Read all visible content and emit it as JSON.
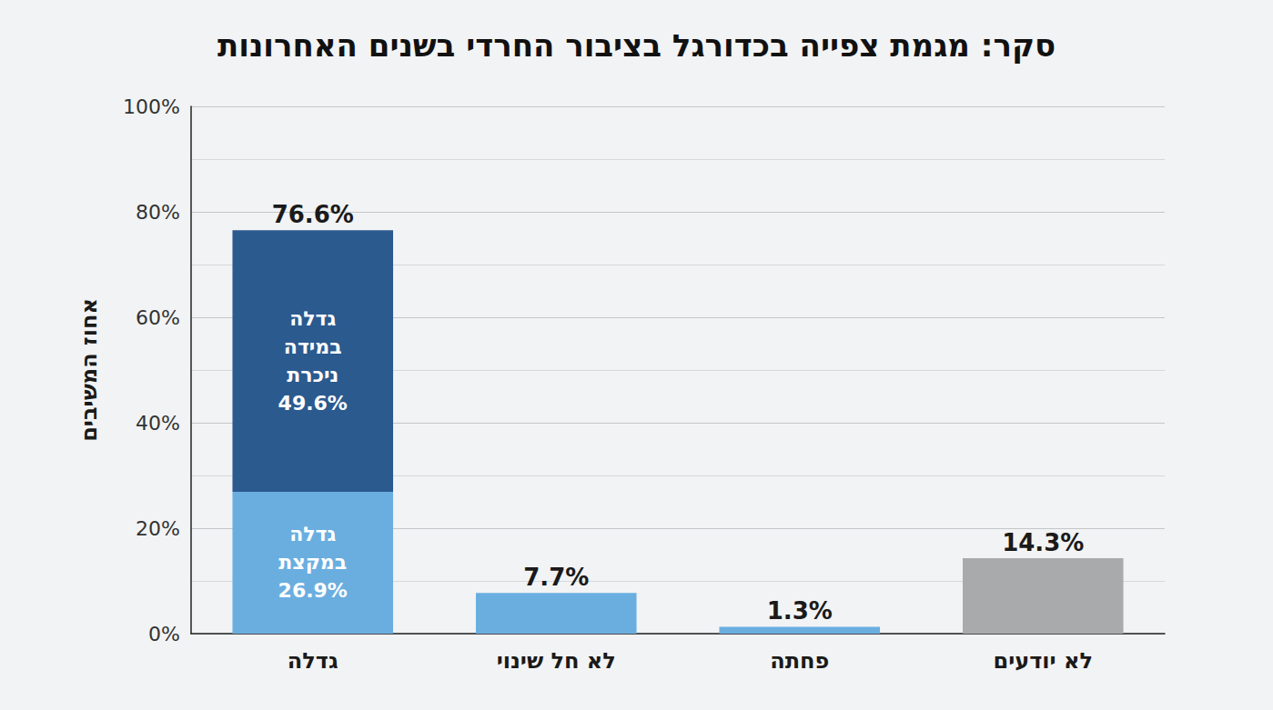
{
  "chart_data": {
    "type": "bar",
    "title": "סקר: מגמת צפייה בכדורגל בציבור החרדי בשנים האחרונות",
    "y_label": "אחוז המשיבים",
    "categories": [
      "גדלה",
      "לא חל שינוי",
      "פחתה",
      "לא יודעים"
    ],
    "stacked": true,
    "data_labels": true,
    "grid": true,
    "series": [
      {
        "name": "גדלה במקצת",
        "color": "#6aaee0",
        "values": [
          26.9,
          null,
          null,
          null
        ],
        "value_labels": [
          "26.9%",
          null,
          null,
          null
        ]
      },
      {
        "name": "גדלה במידה ניכרת",
        "color": "#2b5a8f",
        "values": [
          49.6,
          null,
          null,
          null
        ],
        "value_labels": [
          "49.6%",
          null,
          null,
          null
        ]
      },
      {
        "color": "#6aaee0",
        "values": [
          null,
          7.7,
          1.3,
          14.3
        ],
        "value_labels": [
          null,
          "7.7%",
          "1.3%",
          "14.3%"
        ],
        "colors": [
          null,
          "#6aaee0",
          "#6aaee0",
          "#a9aaac"
        ]
      }
    ],
    "totals": {
      "values": [
        76.6,
        null,
        null,
        null
      ],
      "value_labels": [
        "76.6%",
        null,
        null,
        null
      ]
    },
    "ylim": [
      0,
      100
    ],
    "yticks": [
      {
        "value": 0,
        "label": "0%"
      },
      {
        "value": 20,
        "label": "20%"
      },
      {
        "value": 40,
        "label": "40%"
      },
      {
        "value": 60,
        "label": "60%"
      },
      {
        "value": 80,
        "label": "80%"
      },
      {
        "value": 100,
        "label": "100%"
      }
    ]
  }
}
